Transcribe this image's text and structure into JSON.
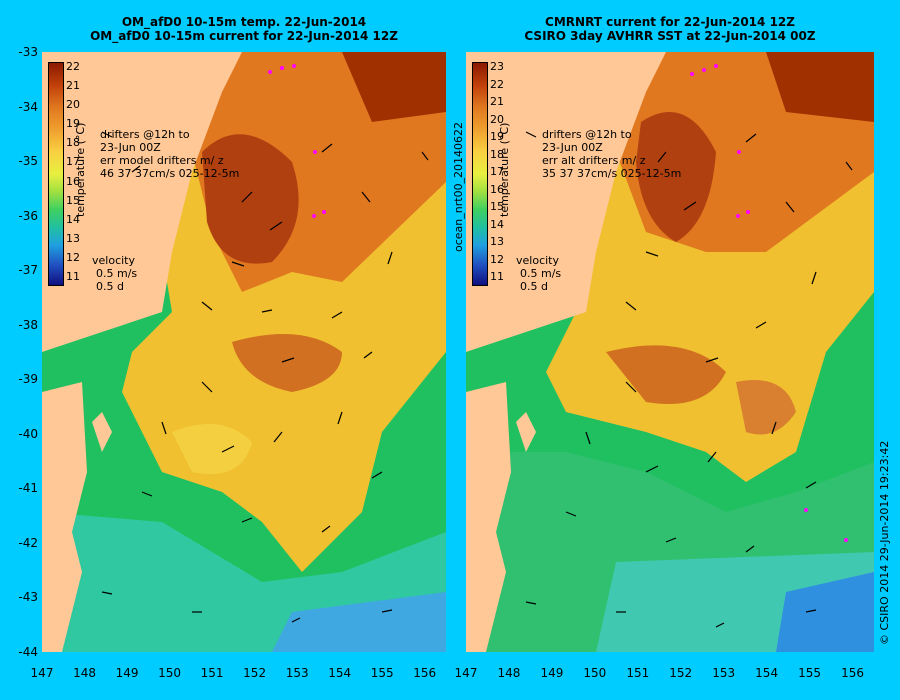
{
  "left_panel": {
    "title_line1": "OM_afD0 10-15m temp. 22-Jun-2014",
    "title_line2": "OM_afD0 10-15m current for 22-Jun-2014 12Z",
    "colorbar_ticks": [
      "22",
      "21",
      "20",
      "19",
      "18",
      "17",
      "16",
      "15",
      "14",
      "13",
      "12",
      "11"
    ],
    "colorbar_label": "temperature (°C)",
    "drifters_line1": "drifters @12h to",
    "drifters_line2": "23-Jun 00Z",
    "drifters_line3": "err model drifters m/ z",
    "drifters_line4": "46   37   37cm/s 025-12-5m",
    "velocity_label": "velocity",
    "velocity_scale1": "0.5 m/s",
    "velocity_scale2": "0.5 d"
  },
  "right_panel": {
    "title_line1": "CMRNRT current for 22-Jun-2014 12Z",
    "title_line2": "CSIRO 3day AVHRR SST at 22-Jun-2014 00Z",
    "colorbar_ticks": [
      "23",
      "22",
      "21",
      "20",
      "19",
      "18",
      "17",
      "16",
      "15",
      "14",
      "13",
      "12",
      "11"
    ],
    "colorbar_label": "temperature (°C)",
    "drifters_line1": "drifters @12h to",
    "drifters_line2": "23-Jun 00Z",
    "drifters_line3": "err alt drifters m/ z",
    "drifters_line4": "35 37 37cm/s 025-12-5m",
    "velocity_label": "velocity",
    "velocity_scale1": "0.5 m/s",
    "velocity_scale2": "0.5 d"
  },
  "y_ticks": [
    "-33",
    "-34",
    "-35",
    "-36",
    "-37",
    "-38",
    "-39",
    "-40",
    "-41",
    "-42",
    "-43",
    "-44"
  ],
  "x_ticks": [
    "147",
    "148",
    "149",
    "150",
    "151",
    "152",
    "153",
    "154",
    "155",
    "156"
  ],
  "side_label_middle": "ocean_nrt00_20140622",
  "side_label_right": "© CSIRO 2014  29-Jun-2014 19:23:42",
  "colors": {
    "background": "#00ccff",
    "land": "#ffc896",
    "drifter": "#ff00ff"
  }
}
